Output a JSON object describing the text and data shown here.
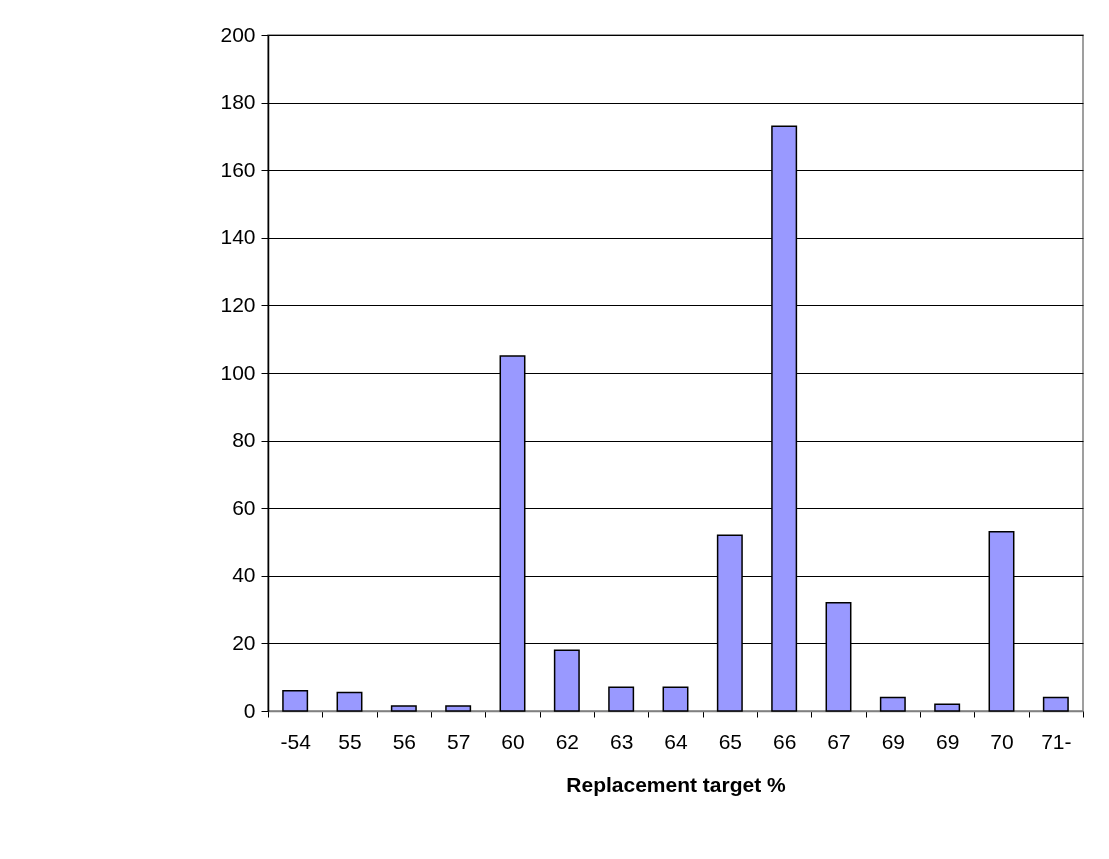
{
  "chart_data": {
    "type": "bar",
    "xlabel": "Replacement  target %",
    "categories": [
      "-54",
      "55",
      "56",
      "57",
      "60",
      "62",
      "63",
      "64",
      "65",
      "66",
      "67",
      "69",
      "69",
      "70",
      "71-"
    ],
    "values": [
      6,
      5.5,
      1.5,
      1.5,
      105,
      18,
      7,
      7,
      52,
      173,
      32,
      4,
      2,
      53,
      4
    ],
    "color": "#9999ff",
    "ylim": [
      0,
      200
    ],
    "yticks": [
      0,
      20,
      40,
      60,
      80,
      100,
      120,
      140,
      160,
      180,
      200
    ],
    "grid": "y",
    "legend": false
  }
}
